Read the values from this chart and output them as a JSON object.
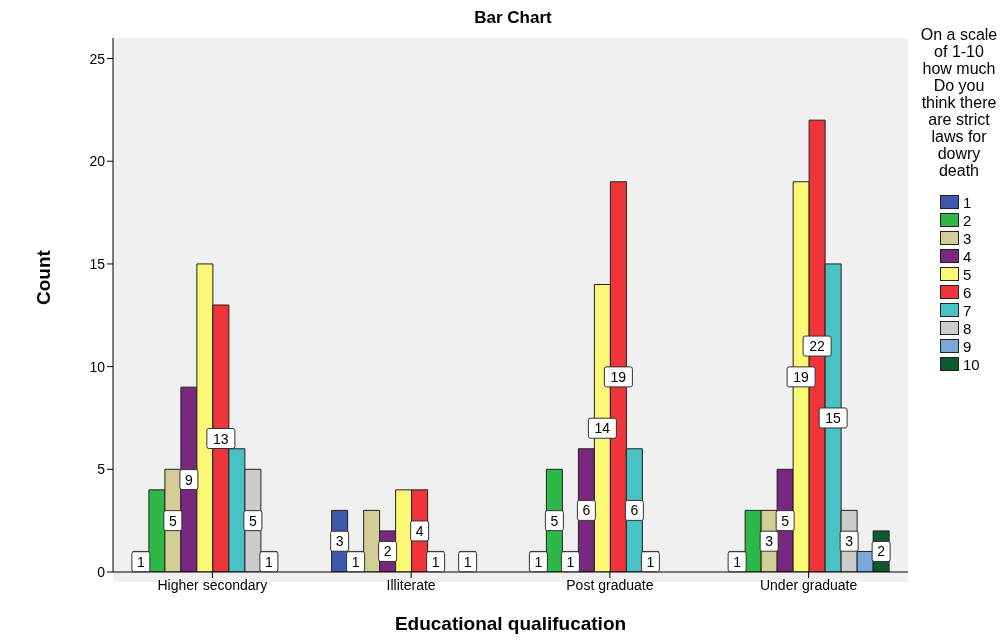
{
  "chart_data": {
    "type": "bar",
    "title": "Bar Chart",
    "xlabel": "Educational qualifucation",
    "ylabel": "Count",
    "legend_title": "On a scale of 1-10 how much Do you think there are strict laws for dowry death",
    "categories": [
      "Higher secondary",
      "Illiterate",
      "Post graduate",
      "Under graduate"
    ],
    "series": [
      {
        "name": "1",
        "color": "#3e58ac",
        "values": [
          1,
          3,
          1,
          1
        ],
        "value_labels": [
          "1",
          "3",
          "1",
          "1"
        ]
      },
      {
        "name": "2",
        "color": "#2eb848",
        "values": [
          4,
          1,
          5,
          3
        ],
        "value_labels": [
          null,
          "1",
          "5",
          null
        ]
      },
      {
        "name": "3",
        "color": "#d3ce97",
        "values": [
          5,
          3,
          1,
          3
        ],
        "value_labels": [
          "5",
          null,
          "1",
          "3"
        ]
      },
      {
        "name": "4",
        "color": "#79287f",
        "values": [
          9,
          2,
          6,
          5
        ],
        "value_labels": [
          "9",
          "2",
          "6",
          "5"
        ]
      },
      {
        "name": "5",
        "color": "#fbf876",
        "values": [
          15,
          4,
          14,
          19
        ],
        "value_labels": [
          null,
          null,
          "14",
          "19"
        ]
      },
      {
        "name": "6",
        "color": "#ef343a",
        "values": [
          13,
          4,
          19,
          22
        ],
        "value_labels": [
          "13",
          "4",
          "19",
          "22"
        ]
      },
      {
        "name": "7",
        "color": "#48c2c5",
        "values": [
          6,
          1,
          6,
          15
        ],
        "value_labels": [
          null,
          "1",
          "6",
          "15"
        ]
      },
      {
        "name": "8",
        "color": "#cccccc",
        "values": [
          5,
          null,
          1,
          3
        ],
        "value_labels": [
          "5",
          null,
          "1",
          "3"
        ]
      },
      {
        "name": "9",
        "color": "#7ba7d9",
        "values": [
          1,
          1,
          null,
          1
        ],
        "value_labels": [
          "1",
          "1",
          null,
          null
        ]
      },
      {
        "name": "10",
        "color": "#0d5a2c",
        "values": [
          null,
          null,
          null,
          2
        ],
        "value_labels": [
          null,
          null,
          null,
          "2"
        ]
      }
    ],
    "ylim": [
      0,
      26
    ],
    "yticks": [
      0,
      5,
      10,
      15,
      20,
      25
    ],
    "grid": false,
    "legend": "right"
  }
}
